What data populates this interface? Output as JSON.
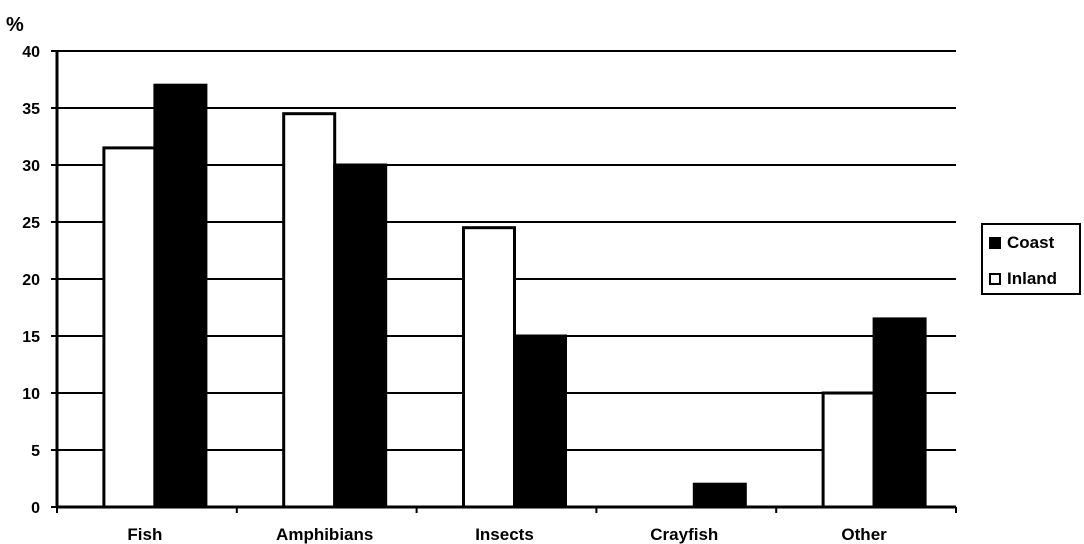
{
  "chart_data": {
    "type": "bar",
    "y_unit": "%",
    "categories": [
      "Fish",
      "Amphibians",
      "Insects",
      "Crayfish",
      "Other"
    ],
    "series": [
      {
        "name": "Inland",
        "color": "#ffffff",
        "values": [
          31.5,
          34.5,
          24.5,
          0,
          10
        ]
      },
      {
        "name": "Coast",
        "color": "#000000",
        "values": [
          37,
          30,
          15,
          2,
          16.5
        ]
      }
    ],
    "ylim": [
      0,
      40
    ],
    "yticks": [
      0,
      5,
      10,
      15,
      20,
      25,
      30,
      35,
      40
    ],
    "grid": true,
    "legend": {
      "position": "right",
      "order": [
        "Coast",
        "Inland"
      ]
    }
  }
}
